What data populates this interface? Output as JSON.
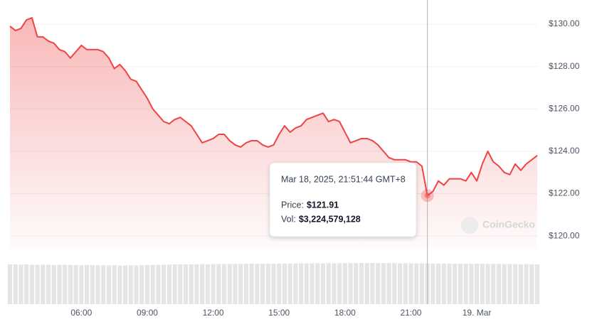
{
  "chart_data": {
    "type": "line",
    "color": "#ef4444",
    "volume_color": "#e5e5e5",
    "grid": true,
    "categories": [
      null,
      null,
      null,
      null,
      null,
      null,
      null,
      null,
      null,
      null,
      null,
      null,
      null,
      "06:00",
      null,
      null,
      null,
      null,
      null,
      null,
      null,
      null,
      null,
      null,
      null,
      "09:00",
      null,
      null,
      null,
      null,
      null,
      null,
      null,
      null,
      null,
      null,
      null,
      "12:00",
      null,
      null,
      null,
      null,
      null,
      null,
      null,
      null,
      null,
      null,
      null,
      "15:00",
      null,
      null,
      null,
      null,
      null,
      null,
      null,
      null,
      null,
      null,
      null,
      "18:00",
      null,
      null,
      null,
      null,
      null,
      null,
      null,
      null,
      null,
      null,
      null,
      "21:00",
      null,
      null,
      null,
      null,
      null,
      null,
      null,
      null,
      null,
      null,
      null,
      "19. Mar",
      null,
      null,
      null,
      null,
      null,
      null,
      null,
      null,
      null,
      null,
      null
    ],
    "values": [
      129.9,
      129.7,
      129.8,
      130.2,
      130.3,
      129.4,
      129.4,
      129.2,
      129.1,
      128.8,
      128.7,
      128.4,
      128.7,
      129.0,
      128.8,
      128.8,
      128.8,
      128.7,
      128.4,
      127.9,
      128.1,
      127.8,
      127.4,
      127.3,
      126.9,
      126.5,
      126.0,
      125.7,
      125.4,
      125.3,
      125.5,
      125.6,
      125.4,
      125.2,
      124.8,
      124.4,
      124.5,
      124.6,
      124.8,
      124.8,
      124.5,
      124.3,
      124.2,
      124.4,
      124.5,
      124.5,
      124.3,
      124.2,
      124.3,
      124.8,
      125.2,
      124.9,
      125.1,
      125.2,
      125.5,
      125.6,
      125.7,
      125.8,
      125.4,
      125.5,
      125.4,
      124.9,
      124.4,
      124.5,
      124.6,
      124.6,
      124.5,
      124.3,
      124.0,
      123.7,
      123.6,
      123.6,
      123.6,
      123.5,
      123.5,
      123.3,
      121.91,
      122.1,
      122.6,
      122.4,
      122.7,
      122.7,
      122.7,
      122.6,
      123.0,
      122.6,
      123.4,
      124.0,
      123.5,
      123.3,
      123.0,
      122.9,
      123.4,
      123.1,
      123.4,
      123.6,
      123.8
    ],
    "volumes": [
      3150000000,
      3140000000,
      3130000000,
      3150000000,
      3120000000,
      3110000000,
      3130000000,
      3120000000,
      3100000000,
      3110000000,
      3120000000,
      3100000000,
      3090000000,
      3080000000,
      3100000000,
      3090000000,
      3070000000,
      3080000000,
      3060000000,
      3070000000,
      3050000000,
      3060000000,
      3070000000,
      3060000000,
      3080000000,
      3090000000,
      3100000000,
      3110000000,
      3120000000,
      3130000000,
      3140000000,
      3150000000,
      3140000000,
      3150000000,
      3160000000,
      3170000000,
      3160000000,
      3170000000,
      3180000000,
      3170000000,
      3180000000,
      3190000000,
      3180000000,
      3190000000,
      3200000000,
      3190000000,
      3200000000,
      3210000000,
      3200000000,
      3210000000,
      3220000000,
      3210000000,
      3220000000,
      3230000000,
      3220000000,
      3230000000,
      3240000000,
      3230000000,
      3240000000,
      3230000000,
      3240000000,
      3250000000,
      3240000000,
      3250000000,
      3260000000,
      3250000000,
      3260000000,
      3250000000,
      3260000000,
      3250000000,
      3240000000,
      3230000000,
      3240000000,
      3230000000,
      3220000000,
      3230000000,
      3224579128,
      3220000000,
      3210000000,
      3220000000,
      3210000000,
      3200000000,
      3210000000,
      3200000000,
      3190000000,
      3200000000,
      3190000000,
      3180000000,
      3190000000,
      3180000000,
      3170000000,
      3180000000,
      3170000000,
      3160000000,
      3170000000,
      3160000000,
      3150000000
    ],
    "ylim": [
      119.4,
      131.14
    ],
    "yticks": [
      {
        "value": 120,
        "label": "$120.00"
      },
      {
        "value": 122,
        "label": "$122.00"
      },
      {
        "value": 124,
        "label": "$124.00"
      },
      {
        "value": 126,
        "label": "$126.00"
      },
      {
        "value": 128,
        "label": "$128.00"
      },
      {
        "value": 130,
        "label": "$130.00"
      }
    ],
    "watermark": "CoinGecko",
    "tooltip": {
      "index": 76,
      "date": "Mar 18, 2025, 21:51:44 GMT+8",
      "price_label": "Price:",
      "price": "$121.91",
      "volume_label": "Vol:",
      "volume": "$3,224,579,128"
    }
  }
}
